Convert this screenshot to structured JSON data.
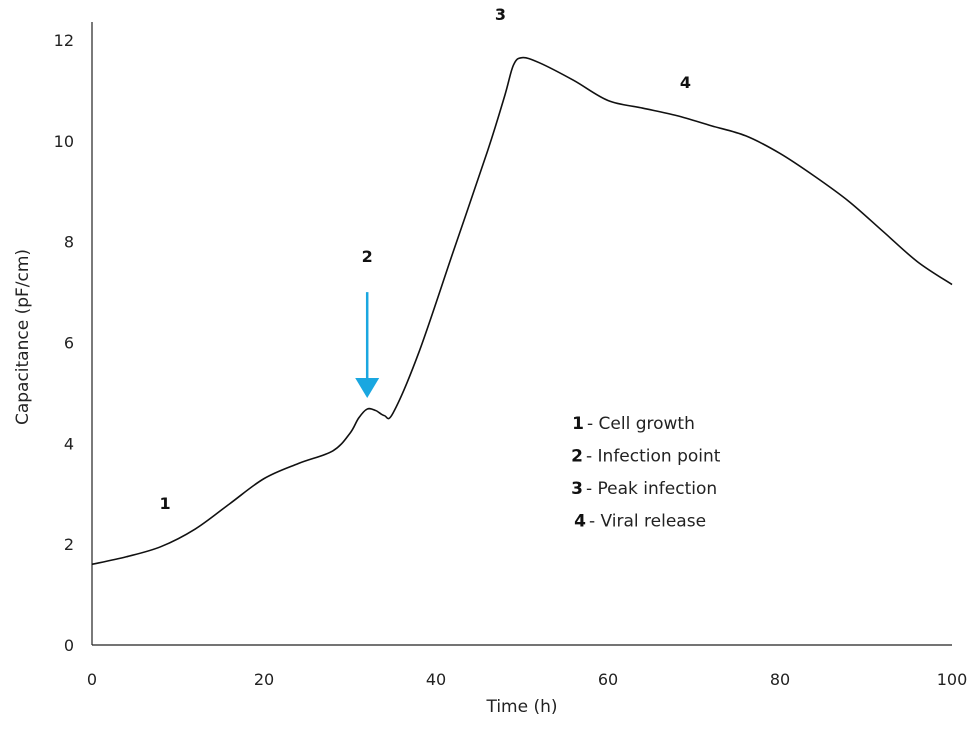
{
  "chart_data": {
    "type": "line",
    "title": "",
    "xlabel": "Time (h)",
    "ylabel": "Capacitance (pF/cm)",
    "xlim": [
      0,
      100
    ],
    "ylim": [
      0,
      12
    ],
    "xticks": [
      0,
      20,
      40,
      60,
      80,
      100
    ],
    "yticks": [
      0,
      2,
      4,
      6,
      8,
      10,
      12
    ],
    "grid": false,
    "series": [
      {
        "color": "#111111",
        "x": [
          0,
          4,
          8,
          12,
          16,
          20,
          24,
          28,
          30,
          31,
          32,
          33,
          34,
          35,
          38,
          42,
          46,
          48,
          49,
          50,
          52,
          56,
          60,
          64,
          68,
          72,
          76,
          80,
          84,
          88,
          92,
          96,
          100
        ],
        "y": [
          1.6,
          1.75,
          1.95,
          2.3,
          2.8,
          3.3,
          3.6,
          3.85,
          4.2,
          4.5,
          4.68,
          4.65,
          4.55,
          4.6,
          5.8,
          7.8,
          9.8,
          10.9,
          11.5,
          11.65,
          11.55,
          11.2,
          10.8,
          10.65,
          10.5,
          10.3,
          10.1,
          9.75,
          9.3,
          8.8,
          8.2,
          7.6,
          7.15
        ]
      }
    ],
    "annotations": [
      {
        "label": "1",
        "x": 8.5,
        "y": 2.7
      },
      {
        "label": "2",
        "x": 32,
        "y": 7.6
      },
      {
        "label": "3",
        "x": 47.5,
        "y": 12.4
      },
      {
        "label": "4",
        "x": 69,
        "y": 11.05
      }
    ],
    "arrow": {
      "x": 32,
      "y_start": 7.0,
      "y_end": 4.9,
      "color": "#1aa7e0"
    },
    "legend": {
      "placement": "center-right",
      "items": [
        {
          "num": "1",
          "text": "- Cell growth"
        },
        {
          "num": "2",
          "text": "- Infection point"
        },
        {
          "num": "3",
          "text": "- Peak infection"
        },
        {
          "num": "4",
          "text": "- Viral release"
        }
      ]
    }
  }
}
